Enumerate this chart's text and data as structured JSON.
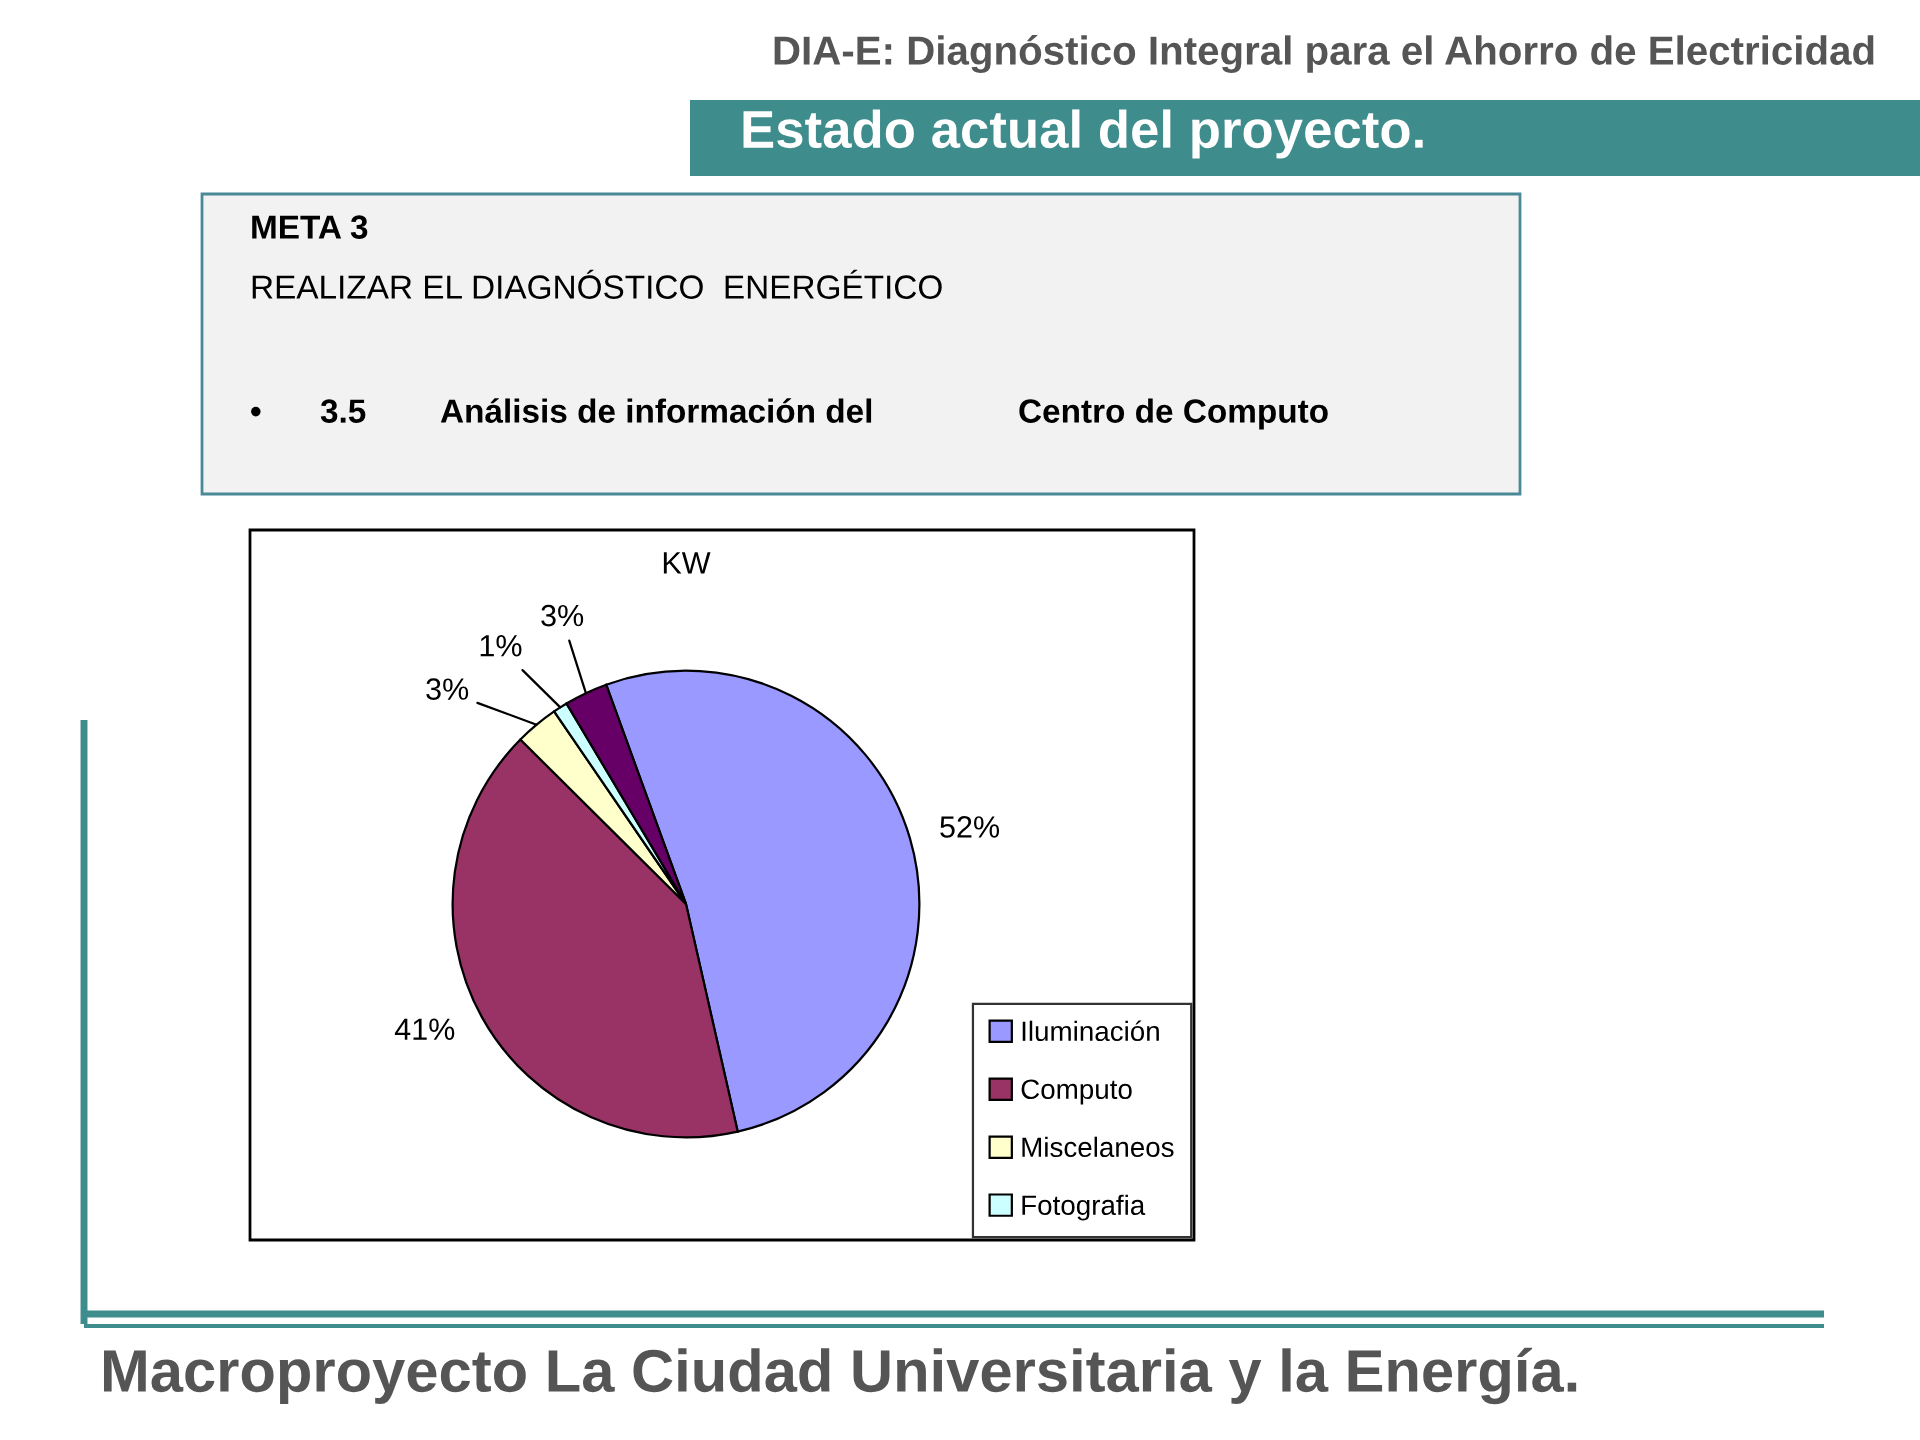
{
  "chart_data": {
    "type": "pie",
    "title": "KW",
    "categories": [
      "Iluminación",
      "Computo",
      "Miscelaneos",
      "Fotografia",
      null
    ],
    "values": [
      52,
      41,
      3,
      1,
      3
    ],
    "colors": [
      "#9999ff",
      "#993366",
      "#ffffcc",
      "#ccffff",
      "#660066"
    ],
    "value_labels": [
      "52%",
      "41%",
      "3%",
      "1%",
      "3%"
    ],
    "legend": "bottom right",
    "annotations": [
      "DIA-E: Diagnóstico Integral para el Ahorro de Electricidad",
      "Estado actual del proyecto.",
      "META 3",
      "REALIZAR EL DIAGNÓSTICO  ENERGÉTICO",
      "•",
      "3.5",
      "Análisis de información del",
      "Centro de Computo",
      "Macroproyecto La Ciudad Universitaria y la Energía."
    ]
  }
}
